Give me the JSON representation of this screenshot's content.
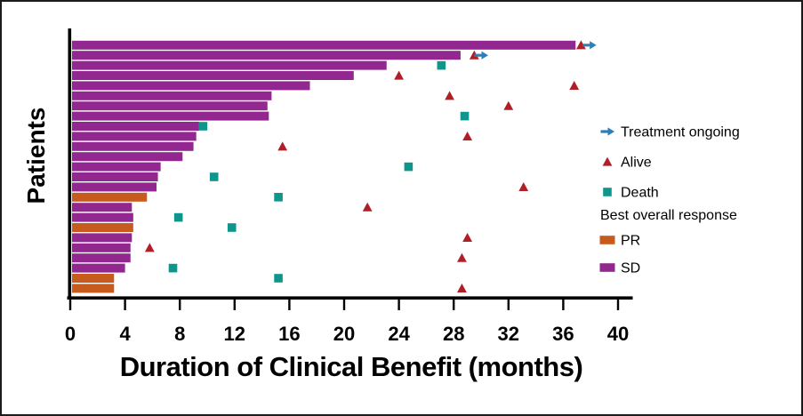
{
  "colors": {
    "sd_purple": "#92278F",
    "pr_orange": "#C75B1E",
    "death_teal": "#0E968C",
    "alive_red": "#B01E28",
    "ongoing_blue": "#2E7EBC",
    "axis_black": "#000000"
  },
  "legend": {
    "event_items": [
      {
        "glyph": "ongoing-arrow",
        "color_key": "ongoing_blue",
        "label": "Treatment ongoing"
      },
      {
        "glyph": "alive-triangle",
        "color_key": "alive_red",
        "label": "Alive"
      },
      {
        "glyph": "death-square",
        "color_key": "death_teal",
        "label": "Death"
      }
    ],
    "response_header": "Best overall response",
    "response_items": [
      {
        "glyph": "swatch",
        "color_key": "pr_orange",
        "label": "PR"
      },
      {
        "glyph": "swatch",
        "color_key": "sd_purple",
        "label": "SD"
      }
    ]
  },
  "chart_data": {
    "type": "bar",
    "subtype": "swimmer-plot",
    "orientation": "horizontal",
    "title": "",
    "xlabel": "Duration of Clinical Benefit (months)",
    "ylabel": "Patients",
    "xlim": [
      0,
      40
    ],
    "x_ticks": [
      0,
      4,
      8,
      12,
      16,
      20,
      24,
      28,
      32,
      36,
      40
    ],
    "grid": false,
    "legend_position": "right",
    "bar_value_unit": "months",
    "patients": [
      {
        "id": 1,
        "response": "SD",
        "duration": 36.9,
        "markers": [
          {
            "type": "alive",
            "month": 37.3
          },
          {
            "type": "ongoing",
            "month": 37.9
          }
        ]
      },
      {
        "id": 2,
        "response": "SD",
        "duration": 28.5,
        "markers": [
          {
            "type": "alive",
            "month": 29.5
          },
          {
            "type": "ongoing",
            "month": 30.0
          }
        ]
      },
      {
        "id": 3,
        "response": "SD",
        "duration": 23.1,
        "markers": [
          {
            "type": "death",
            "month": 27.1
          }
        ]
      },
      {
        "id": 4,
        "response": "SD",
        "duration": 20.7,
        "markers": [
          {
            "type": "alive",
            "month": 24.0
          }
        ]
      },
      {
        "id": 5,
        "response": "SD",
        "duration": 17.5,
        "markers": [
          {
            "type": "alive",
            "month": 36.8
          }
        ]
      },
      {
        "id": 6,
        "response": "SD",
        "duration": 14.7,
        "markers": [
          {
            "type": "alive",
            "month": 27.7
          }
        ]
      },
      {
        "id": 7,
        "response": "SD",
        "duration": 14.4,
        "markers": [
          {
            "type": "alive",
            "month": 32.0
          }
        ]
      },
      {
        "id": 8,
        "response": "SD",
        "duration": 14.5,
        "markers": [
          {
            "type": "death",
            "month": 28.8
          }
        ]
      },
      {
        "id": 9,
        "response": "SD",
        "duration": 9.4,
        "markers": [
          {
            "type": "death",
            "month": 9.7
          }
        ]
      },
      {
        "id": 10,
        "response": "SD",
        "duration": 9.2,
        "markers": [
          {
            "type": "alive",
            "month": 29.0
          }
        ]
      },
      {
        "id": 11,
        "response": "SD",
        "duration": 9.0,
        "markers": [
          {
            "type": "alive",
            "month": 15.5
          }
        ]
      },
      {
        "id": 12,
        "response": "SD",
        "duration": 8.2,
        "markers": []
      },
      {
        "id": 13,
        "response": "SD",
        "duration": 6.6,
        "markers": [
          {
            "type": "death",
            "month": 24.7
          }
        ]
      },
      {
        "id": 14,
        "response": "SD",
        "duration": 6.4,
        "markers": [
          {
            "type": "death",
            "month": 10.5
          }
        ]
      },
      {
        "id": 15,
        "response": "SD",
        "duration": 6.3,
        "markers": [
          {
            "type": "alive",
            "month": 33.1
          }
        ]
      },
      {
        "id": 16,
        "response": "PR",
        "duration": 5.6,
        "markers": [
          {
            "type": "death",
            "month": 15.2
          }
        ]
      },
      {
        "id": 17,
        "response": "SD",
        "duration": 4.5,
        "markers": [
          {
            "type": "alive",
            "month": 21.7
          }
        ]
      },
      {
        "id": 18,
        "response": "SD",
        "duration": 4.6,
        "markers": [
          {
            "type": "death",
            "month": 7.9
          }
        ]
      },
      {
        "id": 19,
        "response": "PR",
        "duration": 4.6,
        "markers": [
          {
            "type": "death",
            "month": 11.8
          }
        ]
      },
      {
        "id": 20,
        "response": "SD",
        "duration": 4.5,
        "markers": [
          {
            "type": "alive",
            "month": 29.0
          }
        ]
      },
      {
        "id": 21,
        "response": "SD",
        "duration": 4.4,
        "markers": [
          {
            "type": "alive",
            "month": 5.8
          }
        ]
      },
      {
        "id": 22,
        "response": "SD",
        "duration": 4.4,
        "markers": [
          {
            "type": "alive",
            "month": 28.6
          }
        ]
      },
      {
        "id": 23,
        "response": "SD",
        "duration": 4.0,
        "markers": [
          {
            "type": "death",
            "month": 7.5
          }
        ]
      },
      {
        "id": 24,
        "response": "PR",
        "duration": 3.2,
        "markers": [
          {
            "type": "death",
            "month": 15.2
          }
        ]
      },
      {
        "id": 25,
        "response": "PR",
        "duration": 3.2,
        "markers": [
          {
            "type": "alive",
            "month": 28.6
          }
        ]
      }
    ]
  }
}
